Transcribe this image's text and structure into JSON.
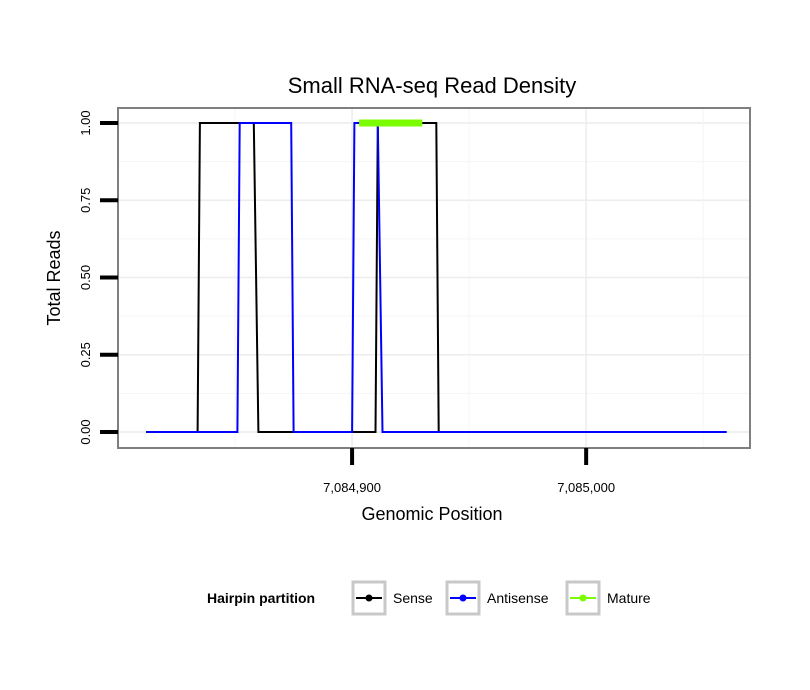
{
  "chart_data": {
    "type": "line",
    "title": "Small RNA-seq Read Density",
    "xlabel": "Genomic Position",
    "ylabel": "Total Reads",
    "xlim": [
      7084800,
      7085070
    ],
    "ylim": [
      0,
      1.05
    ],
    "x_ticks": [
      {
        "value": 7084900,
        "label": "7,084,900"
      },
      {
        "value": 7085000,
        "label": "7,085,000"
      }
    ],
    "y_ticks": [
      {
        "value": 0,
        "label": "0.00"
      },
      {
        "value": 0.25,
        "label": "0.25"
      },
      {
        "value": 0.5,
        "label": "0.50"
      },
      {
        "value": 0.75,
        "label": "0.75"
      },
      {
        "value": 1,
        "label": "1.00"
      }
    ],
    "grid": true,
    "legend": {
      "title": "Hairpin partition",
      "position": "bottom"
    },
    "series": [
      {
        "name": "Sense",
        "color": "#000000",
        "x": [
          7084812,
          7084834,
          7084835,
          7084858,
          7084860,
          7084910,
          7084911,
          7084936,
          7084937,
          7085060
        ],
        "y": [
          0,
          0,
          1,
          1,
          0,
          0,
          1,
          1,
          0,
          0
        ]
      },
      {
        "name": "Antisense",
        "color": "#0000ff",
        "x": [
          7084812,
          7084851,
          7084852,
          7084874,
          7084875,
          7084880,
          7084881,
          7084890,
          7084893,
          7084900,
          7084901,
          7084906,
          7084907,
          7084911,
          7084913,
          7084931,
          7084933,
          7085060
        ],
        "y": [
          0,
          0,
          1,
          1,
          0,
          0,
          0,
          0,
          0,
          0,
          1,
          1,
          1,
          1,
          0,
          0,
          0,
          0
        ]
      },
      {
        "name": "Mature",
        "color": "#7cfc00",
        "x": [
          7084903,
          7084930
        ],
        "y": [
          1,
          1
        ]
      }
    ]
  }
}
